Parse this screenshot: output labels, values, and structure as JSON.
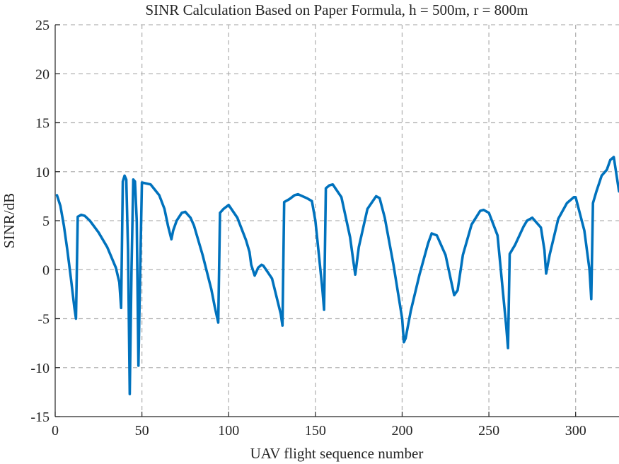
{
  "chart_data": {
    "type": "line",
    "title": "SINR Calculation Based on Paper Formula, h = 500m, r = 800m",
    "xlabel": "UAV flight sequence number",
    "ylabel": "SINR/dB",
    "xlim": [
      0,
      325
    ],
    "ylim": [
      -15,
      25
    ],
    "xticks": [
      0,
      50,
      100,
      150,
      200,
      250,
      300
    ],
    "yticks": [
      -15,
      -10,
      -5,
      0,
      5,
      10,
      15,
      20,
      25
    ],
    "grid": true,
    "series_color": "#0072bd",
    "series": [
      {
        "x": [
          1,
          3,
          5,
          7,
          9,
          11,
          12,
          13,
          15,
          17,
          20,
          25,
          30,
          35,
          37,
          38,
          39,
          40,
          41,
          42,
          43,
          44,
          45,
          46,
          47,
          48,
          49,
          50,
          55,
          60,
          63,
          65,
          67,
          68,
          70,
          73,
          75,
          78,
          80,
          85,
          90,
          92,
          94,
          95,
          97,
          100,
          105,
          110,
          112,
          113,
          115,
          117,
          119,
          120,
          125,
          130,
          131,
          132,
          135,
          138,
          140,
          145,
          148,
          150,
          152,
          154,
          155,
          156,
          158,
          160,
          165,
          170,
          172,
          173,
          175,
          180,
          185,
          187,
          190,
          195,
          200,
          201,
          202,
          205,
          210,
          215,
          217,
          220,
          225,
          229,
          230,
          232,
          235,
          240,
          245,
          247,
          250,
          255,
          260,
          261,
          262,
          265,
          270,
          272,
          275,
          280,
          282,
          283,
          285,
          290,
          295,
          299,
          300,
          305,
          308,
          309,
          310,
          312,
          315,
          318,
          320,
          322,
          325
        ],
        "y": [
          7.6,
          6.5,
          4.5,
          2.0,
          -0.8,
          -3.8,
          -5.0,
          5.4,
          5.6,
          5.5,
          5.0,
          3.8,
          2.3,
          0.2,
          -1.3,
          -3.9,
          9.0,
          9.6,
          9.2,
          2.0,
          -12.7,
          0.0,
          9.2,
          9.0,
          5.0,
          -9.8,
          0.0,
          8.9,
          8.7,
          7.6,
          6.2,
          4.5,
          3.1,
          4.0,
          5.0,
          5.8,
          5.9,
          5.3,
          4.5,
          1.5,
          -2.0,
          -3.8,
          -5.4,
          5.8,
          6.2,
          6.6,
          5.3,
          3.0,
          1.8,
          0.5,
          -0.6,
          0.2,
          0.5,
          0.4,
          -0.9,
          -4.5,
          -5.7,
          6.9,
          7.2,
          7.6,
          7.7,
          7.3,
          7.0,
          5.0,
          1.5,
          -2.0,
          -4.1,
          8.3,
          8.6,
          8.7,
          7.4,
          3.3,
          0.7,
          -0.5,
          2.3,
          6.2,
          7.5,
          7.3,
          5.3,
          0.5,
          -5.0,
          -7.4,
          -7.0,
          -4.2,
          -0.5,
          2.7,
          3.7,
          3.5,
          1.5,
          -1.8,
          -2.6,
          -2.1,
          1.5,
          4.6,
          6.0,
          6.1,
          5.8,
          3.5,
          -5.8,
          -8.0,
          1.6,
          2.5,
          4.4,
          5.0,
          5.3,
          4.3,
          2.0,
          -0.4,
          1.5,
          5.2,
          6.8,
          7.4,
          7.4,
          4.0,
          0.0,
          -3.0,
          6.8,
          8.0,
          9.6,
          10.2,
          11.2,
          11.5,
          8.0
        ]
      }
    ]
  }
}
